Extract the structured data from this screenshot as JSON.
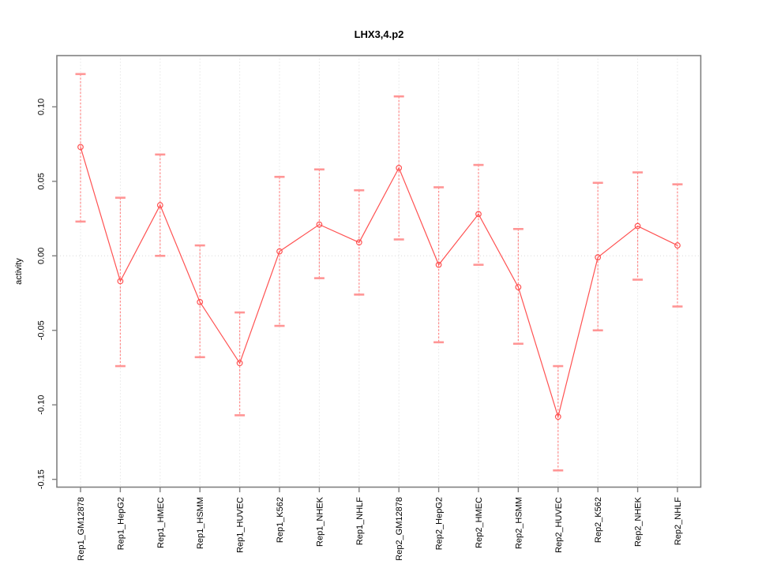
{
  "chart_data": {
    "type": "line",
    "title": "LHX3,4.p2",
    "xlabel": "",
    "ylabel": "activity",
    "categories": [
      "Rep1_GM12878",
      "Rep1_HepG2",
      "Rep1_HMEC",
      "Rep1_HSMM",
      "Rep1_HUVEC",
      "Rep1_K562",
      "Rep1_NHEK",
      "Rep1_NHLF",
      "Rep2_GM12878",
      "Rep2_HepG2",
      "Rep2_HMEC",
      "Rep2_HSMM",
      "Rep2_HUVEC",
      "Rep2_K562",
      "Rep2_NHEK",
      "Rep2_NHLF"
    ],
    "series": [
      {
        "name": "activity",
        "values": [
          0.073,
          -0.017,
          0.034,
          -0.031,
          -0.072,
          0.003,
          0.021,
          0.009,
          0.059,
          -0.006,
          0.028,
          -0.021,
          -0.108,
          -0.001,
          0.02,
          0.007
        ],
        "upper": [
          0.122,
          0.039,
          0.068,
          0.007,
          -0.038,
          0.053,
          0.058,
          0.044,
          0.107,
          0.046,
          0.061,
          0.018,
          -0.074,
          0.049,
          0.056,
          0.048
        ],
        "lower": [
          0.023,
          -0.074,
          0.0,
          -0.068,
          -0.107,
          -0.047,
          -0.015,
          -0.026,
          0.011,
          -0.058,
          -0.006,
          -0.059,
          -0.144,
          -0.05,
          -0.016,
          -0.034
        ]
      }
    ],
    "ytick_values": [
      -0.15,
      -0.1,
      -0.05,
      0.0,
      0.05,
      0.1
    ],
    "ytick_labels": [
      "-0.15",
      "-0.10",
      "-0.05",
      "0.00",
      "0.05",
      "0.10"
    ],
    "ylim": [
      -0.155,
      0.134
    ],
    "grid": "dotted vertical line at each category; dotted horizontal line at y=0",
    "legend": "none",
    "marker": "open-circle",
    "colors": {
      "series_line": "#ff5252",
      "marker_stroke": "#ff5252",
      "error_bar_line": "#ff8a8a",
      "error_bar_cap": "#ff9595",
      "grid_line": "#d9d9d9",
      "frame": "#808080",
      "text": "#000000",
      "background": "#ffffff"
    }
  }
}
